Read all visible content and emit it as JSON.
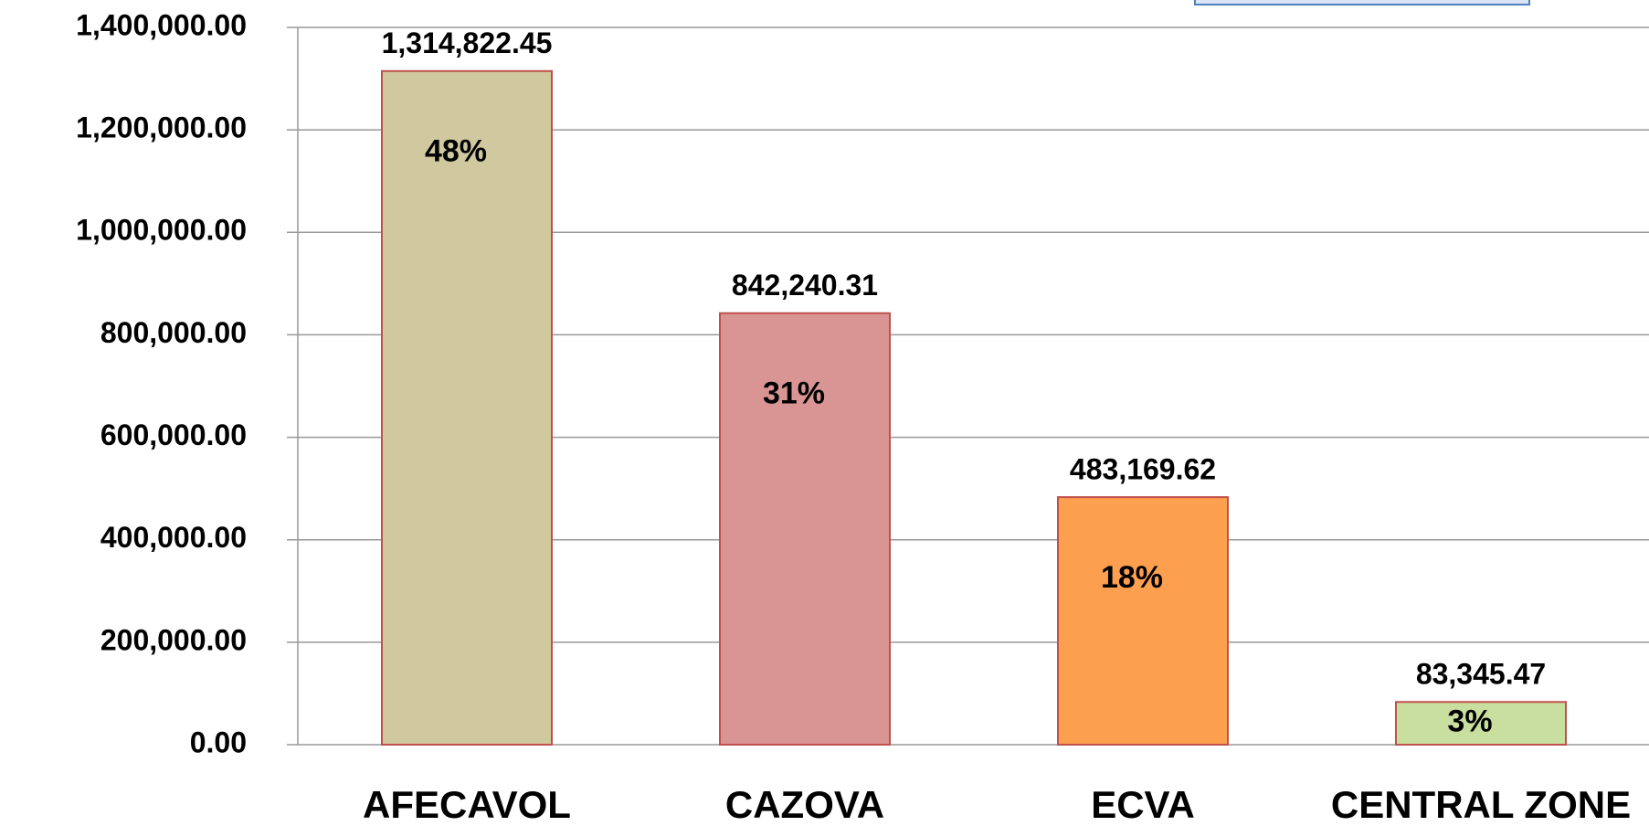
{
  "chart_data": {
    "type": "bar",
    "categories": [
      "AFECAVOL",
      "CAZOVA",
      "ECVA",
      "CENTRAL ZONE"
    ],
    "values": [
      1314822.45,
      842240.31,
      483169.62,
      83345.47
    ],
    "value_labels": [
      "1,314,822.45",
      "842,240.31",
      "483,169.62",
      "83,345.47"
    ],
    "share_values": [
      48,
      31,
      18,
      3
    ],
    "share_labels": [
      "48%",
      "31%",
      "18%",
      "3%"
    ],
    "colors": [
      "#d0c89e",
      "#d99594",
      "#fca04f",
      "#c8df9f"
    ],
    "ylim": [
      0,
      1400000
    ],
    "yticks": [
      {
        "value": 0,
        "label": "0.00"
      },
      {
        "value": 200000,
        "label": "200,000.00"
      },
      {
        "value": 400000,
        "label": "400,000.00"
      },
      {
        "value": 600000,
        "label": "600,000.00"
      },
      {
        "value": 800000,
        "label": "800,000.00"
      },
      {
        "value": 1000000,
        "label": "1,000,000.00"
      },
      {
        "value": 1200000,
        "label": "1,200,000.00"
      },
      {
        "value": 1400000,
        "label": "1,400,000.00"
      }
    ],
    "grid": true
  }
}
